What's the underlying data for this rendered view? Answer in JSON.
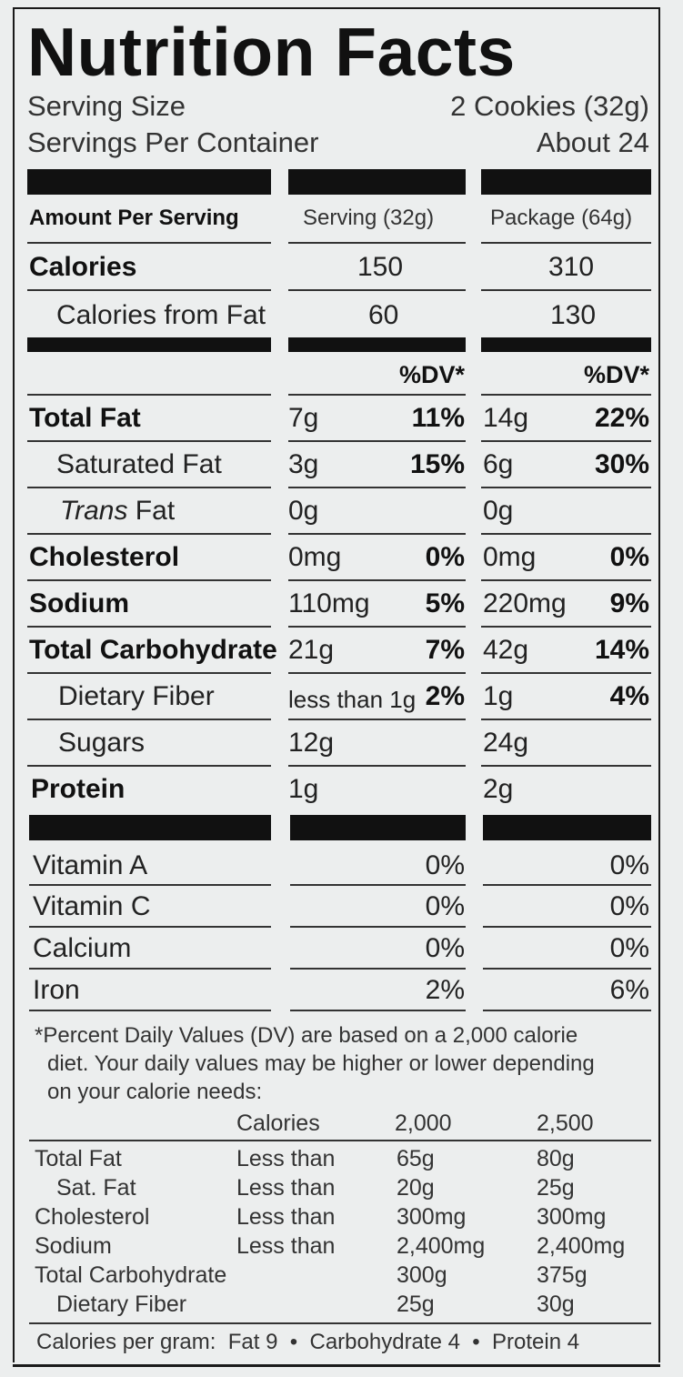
{
  "title": "Nutrition Facts",
  "serving_size": {
    "label": "Serving Size",
    "value": "2 Cookies (32g)"
  },
  "servings_per_container": {
    "label": "Servings Per Container",
    "value": "About 24"
  },
  "amount_header": "Amount Per Serving",
  "col1_header": "Serving (32g)",
  "col2_header": "Package (64g)",
  "calories": {
    "label": "Calories",
    "serving": "150",
    "package": "310"
  },
  "calories_fat": {
    "label": "Calories from Fat",
    "serving": "60",
    "package": "130"
  },
  "dv_header": "%DV*",
  "nutrients": [
    {
      "label": "Total Fat",
      "bold": true,
      "s_amt": "7g",
      "s_pct": "11%",
      "p_amt": "14g",
      "p_pct": "22%"
    },
    {
      "label": "Saturated Fat",
      "bold": false,
      "s_amt": "3g",
      "s_pct": "15%",
      "p_amt": "6g",
      "p_pct": "30%"
    },
    {
      "label_italic": "Trans",
      "label": " Fat",
      "bold": false,
      "s_amt": "0g",
      "s_pct": "",
      "p_amt": "0g",
      "p_pct": ""
    },
    {
      "label": "Cholesterol",
      "bold": true,
      "s_amt": "0mg",
      "s_pct": "0%",
      "p_amt": "0mg",
      "p_pct": "0%"
    },
    {
      "label": "Sodium",
      "bold": true,
      "s_amt": "110mg",
      "s_pct": "5%",
      "p_amt": "220mg",
      "p_pct": "9%"
    },
    {
      "label": "Total Carbohydrate",
      "bold": true,
      "s_amt": "21g",
      "s_pct": "7%",
      "p_amt": "42g",
      "p_pct": "14%"
    },
    {
      "label": "Dietary Fiber",
      "bold": false,
      "s_amt": "less than 1g",
      "s_pct": "2%",
      "p_amt": "1g",
      "p_pct": "4%"
    },
    {
      "label": "Sugars",
      "bold": false,
      "s_amt": "12g",
      "s_pct": "",
      "p_amt": "24g",
      "p_pct": ""
    },
    {
      "label": "Protein",
      "bold": true,
      "s_amt": "1g",
      "s_pct": "",
      "p_amt": "2g",
      "p_pct": ""
    }
  ],
  "vitamins": [
    {
      "label": "Vitamin A",
      "s_pct": "0%",
      "p_pct": "0%"
    },
    {
      "label": "Vitamin C",
      "s_pct": "0%",
      "p_pct": "0%"
    },
    {
      "label": "Calcium",
      "s_pct": "0%",
      "p_pct": "0%"
    },
    {
      "label": "Iron",
      "s_pct": "2%",
      "p_pct": "6%"
    }
  ],
  "footnote": [
    "*Percent Daily Values (DV) are based on a 2,000 calorie",
    "diet. Your daily values may be higher or lower depending",
    "on your calorie needs:"
  ],
  "dv_table": {
    "header": [
      "",
      "Calories",
      "2,000",
      "2,500"
    ],
    "rows": [
      [
        "Total Fat",
        "Less than",
        "65g",
        "80g"
      ],
      [
        "Sat. Fat",
        "Less than",
        "20g",
        "25g"
      ],
      [
        "Cholesterol",
        "Less than",
        "300mg",
        "300mg"
      ],
      [
        "Sodium",
        "Less than",
        "2,400mg",
        "2,400mg"
      ],
      [
        "Total Carbohydrate",
        "",
        "300g",
        "375g"
      ],
      [
        "Dietary Fiber",
        "",
        "25g",
        "30g"
      ]
    ]
  },
  "calories_per_gram": "Calories per gram:  Fat 9  •  Carbohydrate 4  •  Protein 4"
}
